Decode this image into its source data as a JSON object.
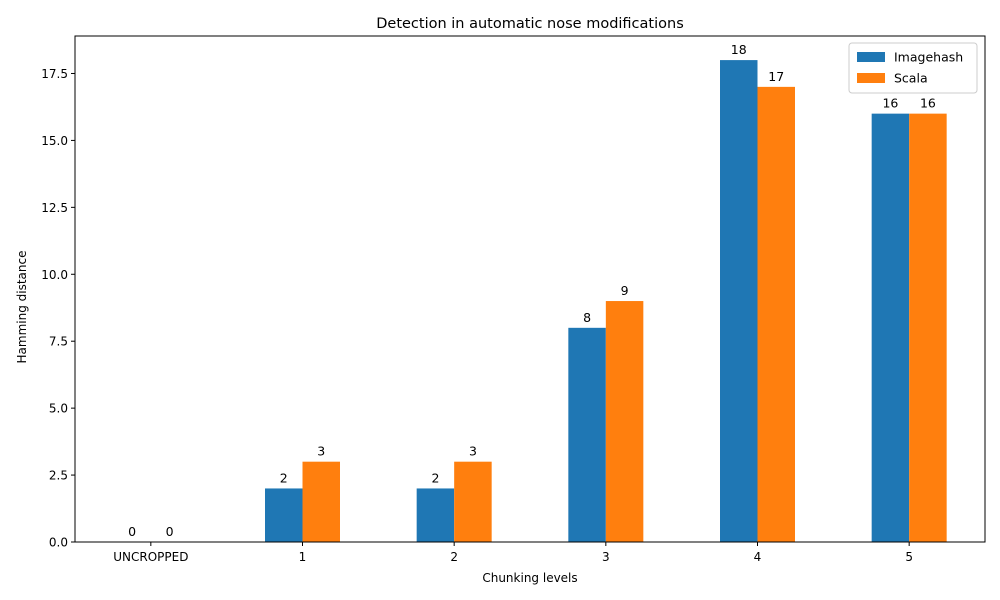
{
  "chart_data": {
    "type": "bar",
    "title": "Detection in automatic nose modifications",
    "xlabel": "Chunking levels",
    "ylabel": "Hamming distance",
    "categories": [
      "UNCROPPED",
      "1",
      "2",
      "3",
      "4",
      "5"
    ],
    "series": [
      {
        "name": "Imagehash",
        "values": [
          0,
          2,
          2,
          8,
          18,
          16
        ],
        "color": "#1f77b4"
      },
      {
        "name": "Scala",
        "values": [
          0,
          3,
          3,
          9,
          17,
          16
        ],
        "color": "#ff7f0e"
      }
    ],
    "ylim": [
      0,
      18.9
    ],
    "yticks": [
      "0.0",
      "2.5",
      "5.0",
      "7.5",
      "10.0",
      "12.5",
      "15.0",
      "17.5"
    ],
    "legend_position": "top-right",
    "grid": false
  }
}
